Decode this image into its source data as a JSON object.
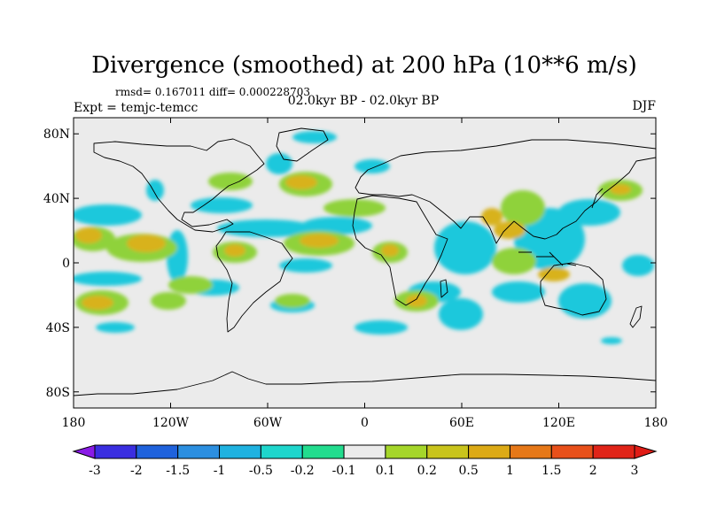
{
  "figure": {
    "title": "Divergence (smoothed) at 200 hPa (10**6 m/s)",
    "stats": "rmsd= 0.167011 diff= 0.000228703",
    "experiment": "Expt = temjc-temcc",
    "period": "02.0kyr BP - 02.0kyr BP",
    "season": "DJF"
  },
  "map": {
    "background_color": "#ebebeb",
    "lon_ticks": [
      "180",
      "120W",
      "60W",
      "0",
      "60E",
      "120E",
      "180"
    ],
    "lat_ticks": [
      "80N",
      "40N",
      "0",
      "40S",
      "80S"
    ]
  },
  "colorbar": {
    "labels": [
      "-3",
      "-2",
      "-1.5",
      "-1",
      "-0.5",
      "-0.2",
      "-0.1",
      "0.1",
      "0.2",
      "0.5",
      "1",
      "1.5",
      "2",
      "3"
    ],
    "colors": [
      "#8a1be6",
      "#3a2ee0",
      "#1f62dc",
      "#2c8fe0",
      "#1fb2e0",
      "#1ed6cc",
      "#22dc8e",
      "#ebebeb",
      "#a5d62a",
      "#c9c41c",
      "#dcaa16",
      "#e67818",
      "#e8501a",
      "#e02418"
    ]
  },
  "chart_data": {
    "type": "map",
    "title": "Divergence (smoothed) at 200 hPa (10**6 m/s)",
    "variable": "Divergence (smoothed) at 200 hPa",
    "units": "10**6 m/s",
    "lon_range": [
      -180,
      180
    ],
    "lat_range": [
      -90,
      90
    ],
    "contour_levels": [
      -3,
      -2,
      -1.5,
      -1,
      -0.5,
      -0.2,
      -0.1,
      0.1,
      0.2,
      0.5,
      1,
      1.5,
      2,
      3
    ]
  }
}
